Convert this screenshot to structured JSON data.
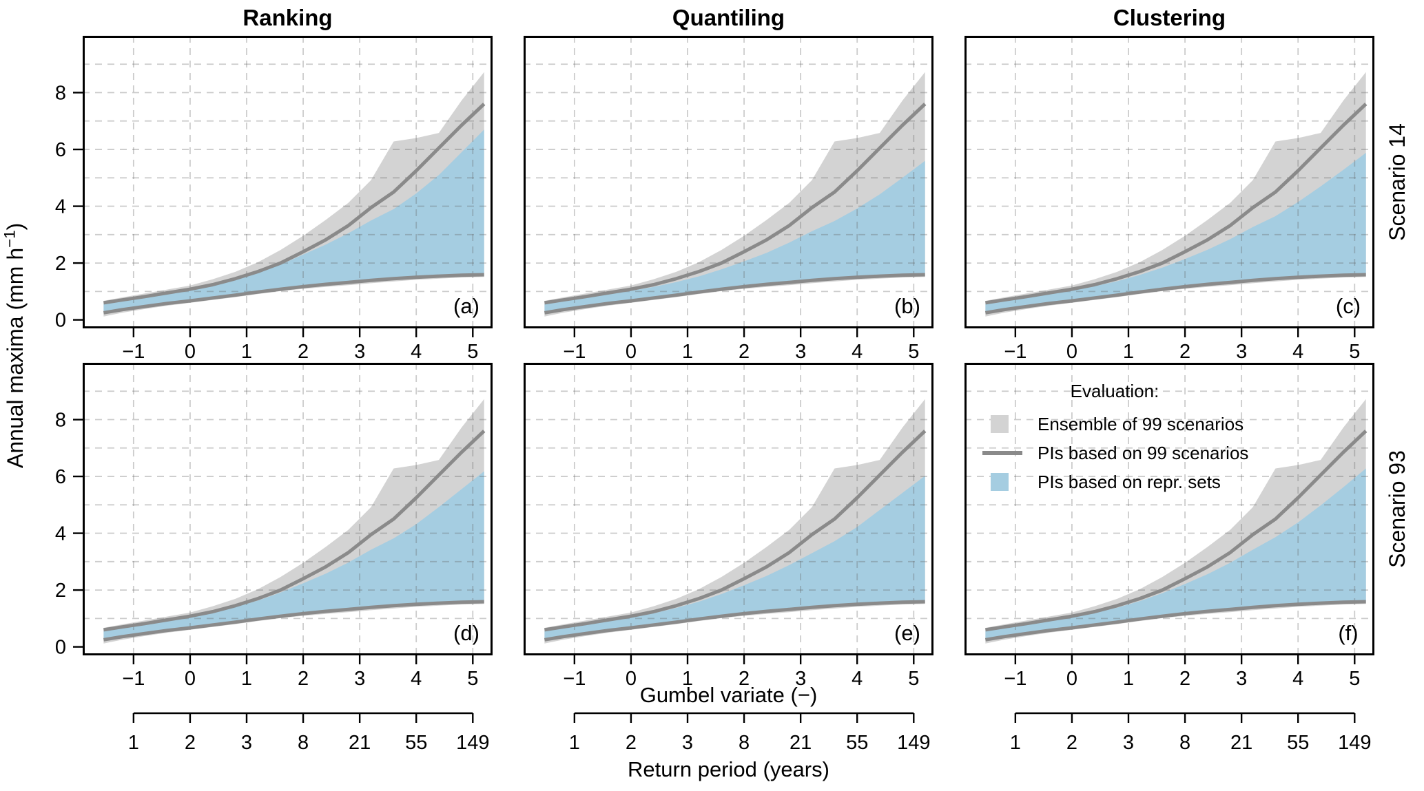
{
  "figure": {
    "column_titles": [
      "Ranking",
      "Quantiling",
      "Clustering"
    ],
    "row_labels": [
      "Scenario 14",
      "Scenario 93"
    ],
    "y_label_prefix": "Annual maxima (mm h",
    "y_label_sup": "−1",
    "y_label_suffix": ")",
    "x_label": "Gumbel variate (−)",
    "x_label_secondary": "Return period (years)",
    "legend": {
      "title": "Evaluation:",
      "items": [
        {
          "label": "Ensemble of 99 scenarios",
          "type": "fill",
          "color": "#d3d3d3"
        },
        {
          "label": "PIs based on 99 scenarios",
          "type": "line",
          "color": "#8a8a8a"
        },
        {
          "label": "PIs based on repr. sets",
          "type": "fill",
          "color": "#a5cde1"
        }
      ]
    },
    "colors": {
      "ensemble_band": "#d3d3d3",
      "repr_band": "#a5cde1",
      "pi_line": "#8a8a8a",
      "grid": "rgba(95,95,95,0.32)",
      "frame": "#000000"
    }
  },
  "chart_data": {
    "type": "area",
    "title": "",
    "x_axis": {
      "label": "Gumbel variate (−)",
      "ticks": [
        -1,
        0,
        1,
        2,
        3,
        4,
        5
      ],
      "tick_labels": [
        "−1",
        "0",
        "1",
        "2",
        "3",
        "4",
        "5"
      ],
      "range": [
        -1.9,
        5.35
      ]
    },
    "x_axis_secondary": {
      "label": "Return period (years)",
      "tick_positions": [
        -1,
        0,
        1,
        2,
        3,
        4,
        5
      ],
      "tick_labels": [
        "1",
        "2",
        "3",
        "8",
        "21",
        "55",
        "149"
      ]
    },
    "y_axis": {
      "label": "Annual maxima (mm h−1)",
      "ticks": [
        0,
        2,
        4,
        6,
        8
      ],
      "tick_labels": [
        "0",
        "2",
        "4",
        "6",
        "8"
      ],
      "range": [
        -0.3,
        10
      ]
    },
    "grid": {
      "x_lines": [
        -1,
        0,
        1,
        2,
        3,
        4,
        5
      ],
      "y_lines": [
        1,
        2,
        3,
        4,
        5,
        6,
        7,
        8,
        9
      ],
      "style": "dashed"
    },
    "x": [
      -1.53,
      -1.2,
      -0.8,
      -0.4,
      0,
      0.4,
      0.8,
      1.2,
      1.6,
      2.0,
      2.4,
      2.8,
      3.2,
      3.6,
      4.0,
      4.4,
      4.8,
      5.2
    ],
    "common_series": {
      "ensemble_max": [
        0.67,
        0.79,
        0.93,
        1.07,
        1.21,
        1.43,
        1.69,
        2.03,
        2.46,
        2.96,
        3.52,
        4.12,
        4.92,
        6.28,
        6.4,
        6.58,
        7.72,
        8.72
      ],
      "ensemble_min": [
        0.12,
        0.25,
        0.38,
        0.5,
        0.6,
        0.7,
        0.8,
        0.91,
        1.01,
        1.09,
        1.16,
        1.22,
        1.29,
        1.35,
        1.41,
        1.45,
        1.49,
        1.51
      ],
      "pi99_upper": [
        0.6,
        0.7,
        0.82,
        0.95,
        1.08,
        1.24,
        1.45,
        1.7,
        2.0,
        2.4,
        2.82,
        3.32,
        3.95,
        4.5,
        5.25,
        6.05,
        6.85,
        7.6
      ],
      "pi99_lower": [
        0.25,
        0.36,
        0.47,
        0.58,
        0.67,
        0.77,
        0.87,
        0.98,
        1.08,
        1.17,
        1.25,
        1.32,
        1.39,
        1.45,
        1.5,
        1.54,
        1.57,
        1.59
      ]
    },
    "panels": [
      {
        "letter": "(a)",
        "column": "Ranking",
        "row": "Scenario 14",
        "legend": false,
        "repr_upper": [
          0.58,
          0.68,
          0.8,
          0.93,
          1.05,
          1.21,
          1.41,
          1.65,
          1.94,
          2.3,
          2.65,
          3.05,
          3.5,
          3.9,
          4.45,
          5.1,
          5.9,
          6.7
        ]
      },
      {
        "letter": "(b)",
        "column": "Quantiling",
        "row": "Scenario 14",
        "legend": false,
        "repr_upper": [
          0.55,
          0.65,
          0.77,
          0.9,
          1.02,
          1.16,
          1.33,
          1.53,
          1.78,
          2.06,
          2.36,
          2.72,
          3.12,
          3.48,
          3.92,
          4.42,
          5.0,
          5.6
        ]
      },
      {
        "letter": "(c)",
        "column": "Clustering",
        "row": "Scenario 14",
        "legend": false,
        "repr_upper": [
          0.56,
          0.66,
          0.78,
          0.91,
          1.03,
          1.18,
          1.36,
          1.58,
          1.84,
          2.14,
          2.47,
          2.84,
          3.27,
          3.65,
          4.15,
          4.7,
          5.28,
          5.88
        ]
      },
      {
        "letter": "(d)",
        "column": "Ranking",
        "row": "Scenario 93",
        "legend": false,
        "repr_upper": [
          0.58,
          0.68,
          0.8,
          0.93,
          1.05,
          1.2,
          1.4,
          1.63,
          1.91,
          2.24,
          2.58,
          2.97,
          3.42,
          3.82,
          4.32,
          4.92,
          5.55,
          6.18
        ]
      },
      {
        "letter": "(e)",
        "column": "Quantiling",
        "row": "Scenario 93",
        "legend": false,
        "repr_upper": [
          0.57,
          0.67,
          0.79,
          0.92,
          1.04,
          1.18,
          1.37,
          1.59,
          1.86,
          2.17,
          2.5,
          2.88,
          3.3,
          3.72,
          4.22,
          4.82,
          5.42,
          6.02
        ]
      },
      {
        "letter": "(f)",
        "column": "Clustering",
        "row": "Scenario 93",
        "legend": true,
        "repr_upper": [
          0.58,
          0.68,
          0.8,
          0.93,
          1.05,
          1.19,
          1.38,
          1.61,
          1.89,
          2.21,
          2.56,
          2.96,
          3.42,
          3.86,
          4.38,
          4.98,
          5.62,
          6.28
        ]
      }
    ]
  }
}
